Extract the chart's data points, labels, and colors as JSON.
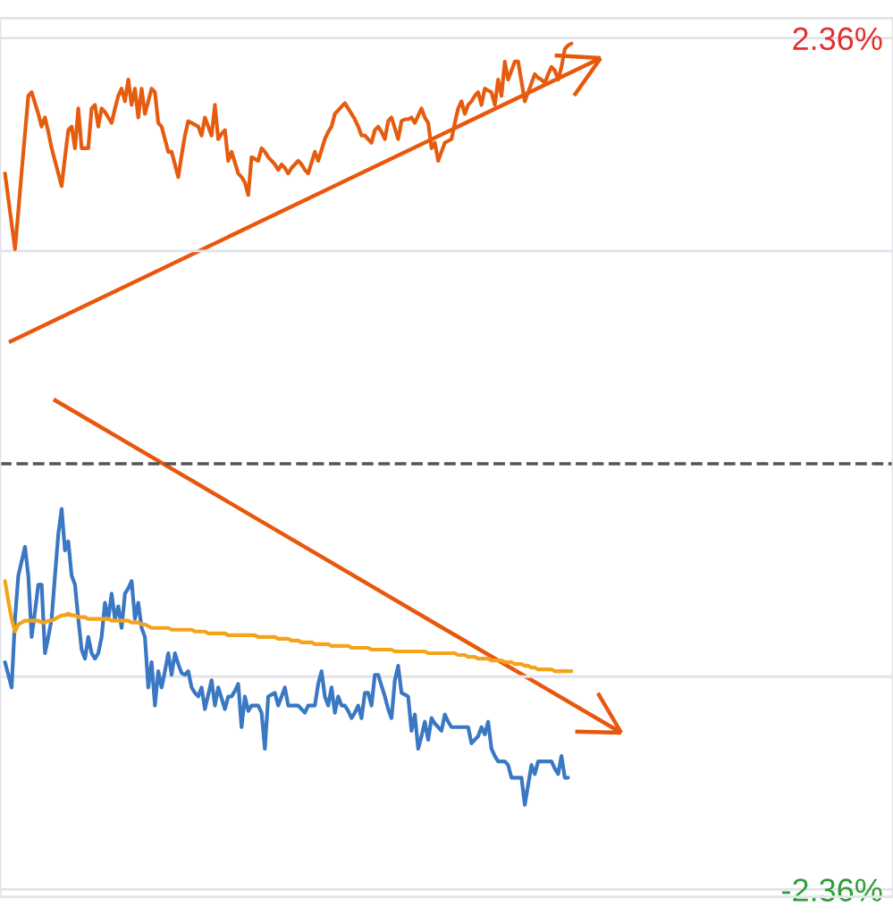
{
  "chart_data": {
    "type": "line",
    "categories": [
      null,
      null,
      null,
      null,
      null,
      null,
      null,
      null,
      null,
      null,
      null,
      null,
      null,
      null,
      null,
      null,
      null,
      null,
      null,
      null,
      null,
      null,
      null,
      null,
      null,
      null,
      null,
      null,
      null,
      null,
      null,
      null,
      null,
      null,
      null,
      null,
      null,
      null,
      null,
      null,
      null,
      null,
      null,
      null,
      null,
      null,
      null,
      null,
      null,
      null,
      null,
      null,
      null,
      null,
      null,
      null,
      null,
      null,
      null,
      null,
      null,
      null,
      null,
      null,
      null,
      null,
      null,
      null,
      null,
      null,
      null,
      null,
      null,
      null,
      null,
      null,
      null,
      null,
      null,
      null,
      null,
      null,
      null,
      null,
      null,
      null,
      null,
      null,
      null,
      null,
      null,
      null,
      null,
      null,
      null,
      null,
      null,
      null,
      null,
      null,
      null,
      null,
      null,
      null,
      null,
      null,
      null,
      null,
      null,
      null,
      null,
      null,
      null,
      null,
      null,
      null,
      null,
      null,
      null,
      null,
      null,
      null,
      null,
      null,
      null,
      null,
      null,
      null,
      null,
      null,
      null,
      null,
      null,
      null,
      null,
      null,
      null,
      null,
      null,
      null,
      null,
      null,
      null,
      null,
      null,
      null,
      null,
      null,
      null,
      null,
      null,
      null,
      null,
      null,
      null,
      null,
      null,
      null,
      null,
      null,
      null,
      null,
      null,
      null,
      null,
      null,
      null,
      null,
      null,
      null,
      null,
      null,
      null,
      null,
      null,
      null,
      null,
      null,
      null,
      null,
      null,
      null,
      null,
      null,
      null,
      null,
      null,
      null,
      null,
      null,
      null,
      null,
      null,
      null,
      null,
      null,
      null,
      null,
      null,
      null,
      null,
      null,
      null,
      null,
      null,
      null,
      null,
      null,
      null,
      null,
      null,
      null,
      null,
      null,
      null,
      null,
      null,
      null,
      null,
      null,
      null,
      null,
      null,
      null,
      null,
      null,
      null,
      null,
      null,
      null,
      null,
      null,
      null,
      null,
      null,
      null,
      null,
      null,
      null,
      null,
      null,
      null,
      null,
      null,
      null,
      null,
      null,
      null,
      null,
      null,
      null,
      null,
      null,
      null,
      null,
      null,
      null,
      null,
      null,
      null,
      null,
      null,
      null,
      null,
      null,
      null,
      null,
      null
    ],
    "ylim": [
      -2.4,
      2.47
    ],
    "yticks": [
      {
        "value": -2.36,
        "label": "-2.36%"
      },
      {
        "value": -1.18,
        "label": null
      },
      {
        "value": 1.18,
        "label": null
      },
      {
        "value": 2.36,
        "label": "2.36%"
      }
    ],
    "tick_labels": "y",
    "grid": "y",
    "legend": false,
    "marker": "none",
    "line_style": "solid",
    "ref_lines": [
      {
        "axis": "y",
        "value": 0,
        "color": "#555555",
        "line_style": "dashed"
      }
    ],
    "series": [
      {
        "color": "#e65c0f",
        "values": [
          null,
          1.61,
          1.47,
          1.33,
          1.19,
          1.4,
          1.62,
          1.83,
          2.04,
          2.06,
          2.0,
          1.94,
          1.87,
          1.92,
          1.84,
          1.75,
          1.68,
          1.61,
          1.54,
          1.7,
          1.85,
          1.87,
          1.75,
          1.97,
          1.75,
          1.75,
          1.75,
          1.97,
          1.99,
          1.87,
          1.97,
          1.95,
          1.92,
          1.89,
          1.97,
          2.04,
          2.08,
          2.01,
          2.13,
          1.99,
          2.08,
          1.92,
          2.08,
          1.94,
          2.01,
          2.08,
          2.06,
          1.89,
          1.87,
          1.8,
          1.73,
          1.73,
          1.66,
          1.59,
          1.71,
          1.82,
          1.9,
          1.89,
          1.88,
          1.87,
          1.82,
          1.92,
          1.87,
          1.82,
          1.99,
          1.8,
          1.83,
          1.85,
          1.68,
          1.73,
          1.67,
          1.61,
          1.59,
          1.56,
          1.49,
          1.7,
          1.69,
          1.68,
          1.75,
          1.73,
          1.7,
          1.68,
          1.66,
          1.63,
          1.66,
          1.64,
          1.61,
          1.64,
          1.66,
          1.68,
          1.66,
          1.63,
          1.61,
          1.67,
          1.73,
          1.68,
          1.74,
          1.8,
          1.84,
          1.87,
          1.94,
          1.96,
          1.98,
          2.0,
          1.97,
          1.94,
          1.91,
          1.87,
          1.82,
          1.82,
          1.8,
          1.78,
          1.85,
          1.87,
          1.84,
          1.8,
          1.9,
          1.92,
          1.86,
          1.8,
          1.9,
          1.91,
          1.91,
          1.92,
          1.89,
          1.93,
          1.97,
          1.92,
          1.89,
          1.75,
          1.78,
          1.68,
          1.73,
          1.78,
          1.79,
          1.8,
          1.89,
          1.97,
          2.01,
          1.94,
          1.99,
          2.01,
          2.04,
          2.06,
          1.99,
          2.08,
          2.07,
          2.06,
          1.99,
          2.13,
          2.04,
          2.23,
          2.13,
          2.18,
          2.23,
          2.23,
          2.12,
          2.01,
          2.06,
          2.11,
          2.16,
          2.14,
          2.13,
          2.11,
          2.16,
          2.2,
          2.18,
          2.13,
          2.2,
          2.3,
          2.32,
          2.33,
          null,
          null,
          null,
          null,
          null,
          null,
          null,
          null,
          null,
          null,
          null,
          null,
          null,
          null,
          null,
          null,
          null,
          null,
          null,
          null,
          null,
          null,
          null,
          null,
          null,
          null,
          null,
          null,
          null,
          null,
          null,
          null,
          null,
          null,
          null,
          null,
          null,
          null,
          null,
          null,
          null,
          null,
          null,
          null,
          null,
          null,
          null,
          null,
          null,
          null,
          null,
          null,
          null,
          null,
          null,
          null,
          null,
          null,
          null,
          null,
          null,
          null,
          null,
          null,
          null,
          null,
          null,
          null,
          null,
          null,
          null,
          null,
          null,
          null,
          null,
          null,
          null,
          null,
          null,
          null,
          null,
          null,
          null,
          null,
          null,
          null,
          null,
          null,
          null,
          null,
          null,
          null,
          null,
          null,
          null,
          null
        ]
      },
      {
        "color": "#3a78c3",
        "values": [
          null,
          -1.1,
          -1.17,
          -1.24,
          -0.86,
          -0.62,
          -0.54,
          -0.46,
          -0.62,
          -0.96,
          -0.82,
          -0.67,
          -0.67,
          -1.05,
          -0.96,
          -0.86,
          -0.62,
          -0.39,
          -0.25,
          -0.48,
          -0.43,
          -0.62,
          -0.67,
          -0.86,
          -1.03,
          -1.08,
          -0.96,
          -1.05,
          -1.08,
          -1.05,
          -0.96,
          -0.77,
          -0.86,
          -0.72,
          -0.86,
          -0.79,
          -0.91,
          -0.72,
          -0.69,
          -0.65,
          -0.86,
          -0.77,
          -0.91,
          -0.96,
          -1.24,
          -1.1,
          -1.34,
          -1.15,
          -1.24,
          -1.15,
          -1.05,
          -1.17,
          -1.05,
          -1.11,
          -1.16,
          -1.17,
          -1.15,
          -1.24,
          -1.27,
          -1.29,
          -1.24,
          -1.36,
          -1.28,
          -1.2,
          -1.34,
          -1.24,
          -1.3,
          -1.36,
          -1.29,
          -1.29,
          -1.26,
          -1.22,
          -1.46,
          -1.29,
          -1.37,
          -1.34,
          -1.34,
          -1.34,
          -1.38,
          -1.58,
          -1.29,
          -1.28,
          -1.27,
          -1.34,
          -1.29,
          -1.24,
          -1.34,
          -1.34,
          -1.34,
          -1.34,
          -1.36,
          -1.38,
          -1.34,
          -1.34,
          -1.34,
          -1.22,
          -1.15,
          -1.29,
          -1.34,
          -1.24,
          -1.38,
          -1.29,
          -1.34,
          -1.34,
          -1.37,
          -1.41,
          -1.38,
          -1.34,
          -1.41,
          -1.27,
          -1.27,
          -1.34,
          -1.17,
          -1.17,
          -1.23,
          -1.29,
          -1.36,
          -1.41,
          -1.2,
          -1.12,
          -1.27,
          -1.28,
          -1.29,
          -1.48,
          -1.39,
          -1.58,
          -1.51,
          -1.43,
          -1.53,
          -1.41,
          -1.44,
          -1.46,
          -1.48,
          -1.39,
          -1.43,
          -1.46,
          -1.46,
          -1.46,
          -1.46,
          -1.46,
          -1.46,
          -1.55,
          -1.53,
          -1.51,
          -1.46,
          -1.5,
          -1.43,
          -1.58,
          -1.62,
          -1.65,
          -1.65,
          -1.65,
          -1.67,
          -1.74,
          -1.74,
          -1.74,
          -1.74,
          -1.89,
          -1.78,
          -1.67,
          -1.72,
          -1.65,
          -1.65,
          -1.65,
          -1.65,
          -1.65,
          -1.69,
          -1.72,
          -1.62,
          -1.74,
          -1.74,
          null,
          null,
          null,
          null,
          null,
          null,
          null,
          null,
          null,
          null,
          null,
          null,
          null,
          null,
          null,
          null,
          null,
          null,
          null,
          null,
          null,
          null,
          null,
          null,
          null,
          null,
          null,
          null,
          null,
          null,
          null,
          null,
          null,
          null,
          null,
          null,
          null,
          null,
          null,
          null,
          null,
          null,
          null,
          null,
          null,
          null,
          null,
          null,
          null,
          null,
          null,
          null,
          null,
          null,
          null,
          null,
          null,
          null,
          null,
          null,
          null,
          null,
          null,
          null,
          null,
          null,
          null,
          null,
          null,
          null,
          null,
          null,
          null,
          null,
          null,
          null,
          null,
          null,
          null,
          null,
          null,
          null,
          null,
          null,
          null,
          null,
          null,
          null,
          null,
          null,
          null,
          null,
          null,
          null,
          null,
          null,
          null
        ]
      },
      {
        "color": "#f5a31a",
        "values": [
          null,
          -0.65,
          -0.76,
          -0.86,
          -0.93,
          -0.89,
          -0.88,
          -0.87,
          -0.87,
          -0.87,
          -0.87,
          -0.87,
          -0.88,
          -0.88,
          -0.87,
          -0.87,
          -0.86,
          -0.85,
          -0.84,
          -0.84,
          -0.83,
          -0.84,
          -0.84,
          -0.85,
          -0.85,
          -0.85,
          -0.86,
          -0.86,
          -0.86,
          -0.86,
          -0.86,
          -0.86,
          -0.86,
          -0.87,
          -0.87,
          -0.87,
          -0.87,
          -0.87,
          -0.87,
          -0.88,
          -0.88,
          -0.88,
          -0.89,
          -0.89,
          -0.9,
          -0.91,
          -0.91,
          -0.91,
          -0.91,
          -0.91,
          -0.91,
          -0.92,
          -0.92,
          -0.92,
          -0.92,
          -0.92,
          -0.92,
          -0.92,
          -0.93,
          -0.93,
          -0.93,
          -0.93,
          -0.94,
          -0.94,
          -0.94,
          -0.94,
          -0.94,
          -0.94,
          -0.95,
          -0.95,
          -0.95,
          -0.95,
          -0.95,
          -0.95,
          -0.95,
          -0.95,
          -0.95,
          -0.96,
          -0.96,
          -0.96,
          -0.96,
          -0.96,
          -0.96,
          -0.97,
          -0.97,
          -0.97,
          -0.97,
          -0.98,
          -0.98,
          -0.98,
          -0.99,
          -0.99,
          -0.99,
          -0.99,
          -1.0,
          -1.0,
          -1.0,
          -1.0,
          -1.0,
          -1.01,
          -1.01,
          -1.01,
          -1.01,
          -1.01,
          -1.01,
          -1.02,
          -1.02,
          -1.02,
          -1.02,
          -1.02,
          -1.02,
          -1.03,
          -1.03,
          -1.03,
          -1.03,
          -1.03,
          -1.03,
          -1.03,
          -1.04,
          -1.04,
          -1.04,
          -1.04,
          -1.04,
          -1.04,
          -1.04,
          -1.04,
          -1.04,
          -1.04,
          -1.05,
          -1.05,
          -1.05,
          -1.05,
          -1.05,
          -1.05,
          -1.05,
          -1.05,
          -1.05,
          -1.06,
          -1.06,
          -1.06,
          -1.07,
          -1.07,
          -1.07,
          -1.08,
          -1.08,
          -1.08,
          -1.08,
          -1.09,
          -1.09,
          -1.09,
          -1.09,
          -1.1,
          -1.1,
          -1.1,
          -1.11,
          -1.11,
          -1.11,
          -1.12,
          -1.12,
          -1.13,
          -1.13,
          -1.14,
          -1.14,
          -1.14,
          -1.14,
          -1.14,
          -1.15,
          -1.15,
          -1.15,
          -1.15,
          -1.15,
          -1.15,
          null,
          null,
          null,
          null,
          null,
          null,
          null,
          null,
          null,
          null,
          null,
          null,
          null,
          null,
          null,
          null,
          null,
          null,
          null,
          null,
          null,
          null,
          null,
          null,
          null,
          null,
          null,
          null,
          null,
          null,
          null,
          null,
          null,
          null,
          null,
          null,
          null,
          null,
          null,
          null,
          null,
          null,
          null,
          null,
          null,
          null,
          null,
          null,
          null,
          null,
          null,
          null,
          null,
          null,
          null,
          null,
          null,
          null,
          null,
          null,
          null,
          null,
          null,
          null,
          null,
          null,
          null,
          null,
          null,
          null,
          null,
          null,
          null,
          null,
          null,
          null,
          null,
          null,
          null,
          null,
          null,
          null,
          null,
          null,
          null,
          null,
          null,
          null,
          null,
          null,
          null,
          null,
          null,
          null,
          null,
          null
        ]
      }
    ]
  }
}
